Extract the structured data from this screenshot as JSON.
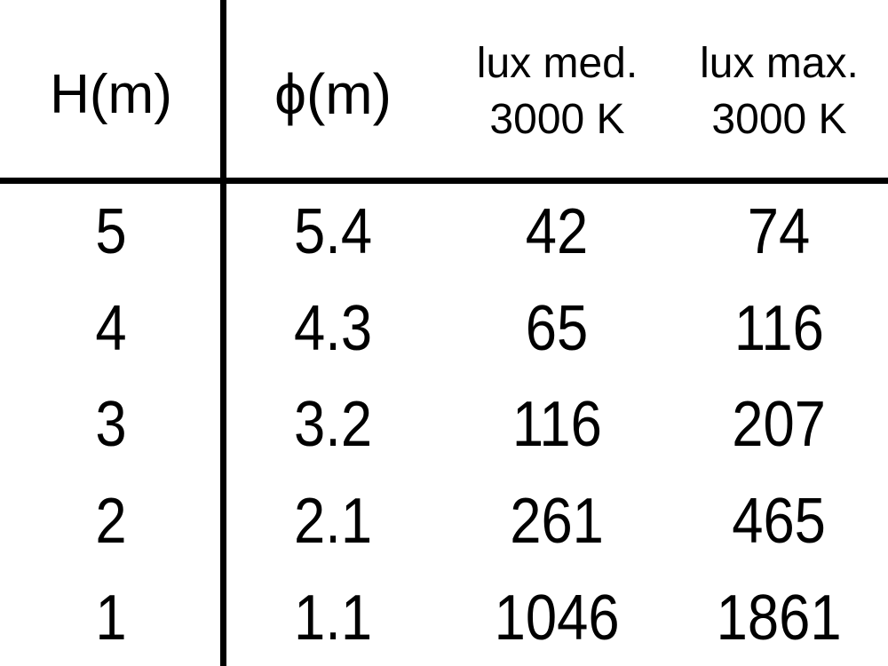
{
  "colors": {
    "background": "#ffffff",
    "text": "#000000",
    "rule_line": "#000000"
  },
  "chart_data": {
    "type": "table",
    "columns": [
      {
        "label": "H(m)",
        "sublabel": ""
      },
      {
        "label": "ϕ(m)",
        "sublabel": ""
      },
      {
        "label": "lux med.",
        "sublabel": "3000 K"
      },
      {
        "label": "lux max.",
        "sublabel": "3000 K"
      }
    ],
    "rows": [
      [
        "5",
        "5.4",
        "42",
        "74"
      ],
      [
        "4",
        "4.3",
        "65",
        "116"
      ],
      [
        "3",
        "3.2",
        "116",
        "207"
      ],
      [
        "2",
        "2.1",
        "261",
        "465"
      ],
      [
        "1",
        "1.1",
        "1046",
        "1861"
      ]
    ],
    "layout": {
      "vertical_rule_after_column": 1,
      "horizontal_rule_below_header": true,
      "grid": "off"
    }
  }
}
